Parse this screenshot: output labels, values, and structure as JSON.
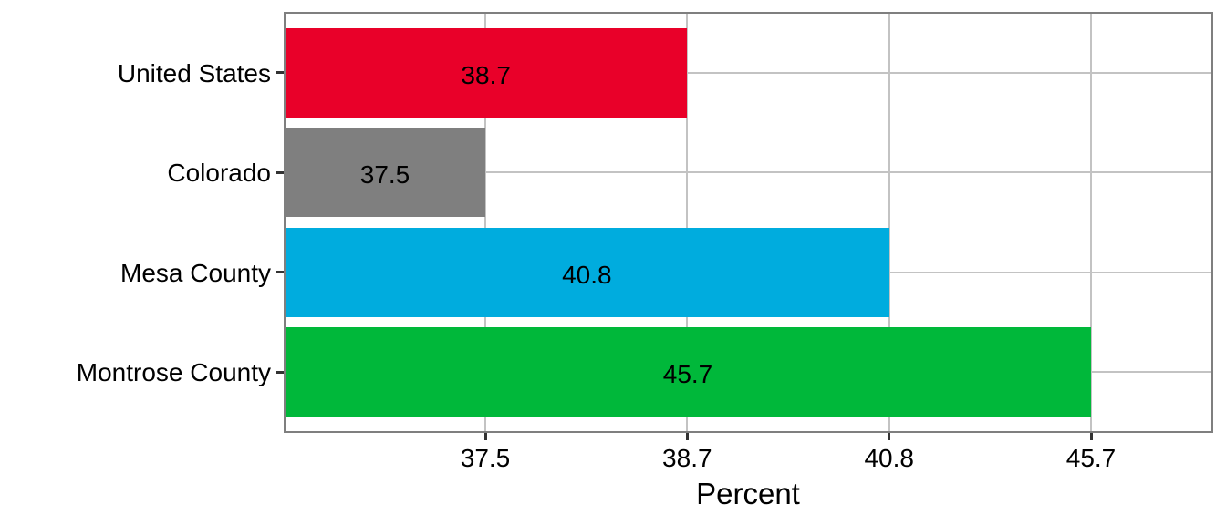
{
  "chart_data": {
    "type": "bar",
    "orientation": "horizontal",
    "title": "",
    "categories": [
      "United States",
      "Colorado",
      "Mesa County",
      "Montrose County"
    ],
    "values": [
      38.7,
      37.5,
      40.8,
      45.7
    ],
    "bar_labels": [
      "38.7",
      "37.5",
      "40.8",
      "45.7"
    ],
    "bar_colors": [
      "#E90029",
      "#7F7F7F",
      "#00ACDE",
      "#00B83A"
    ],
    "xlabel": "Percent",
    "ylabel": "",
    "x_ticks": [
      37.5,
      38.7,
      40.8,
      45.7
    ],
    "x_tick_labels": [
      "37.5",
      "38.7",
      "40.8",
      "45.7"
    ],
    "grid": "on",
    "legend": "none",
    "axis_note": "x ticks are equally spaced at the four data values; each bar ends exactly at the tick matching its value"
  },
  "style": {
    "background_color": "#FFFFFF",
    "grid_color": "#C3C3C3",
    "panel_border_color": "#7F7F7F",
    "tick_mark_color": "#333333",
    "text_color": "#000000"
  }
}
